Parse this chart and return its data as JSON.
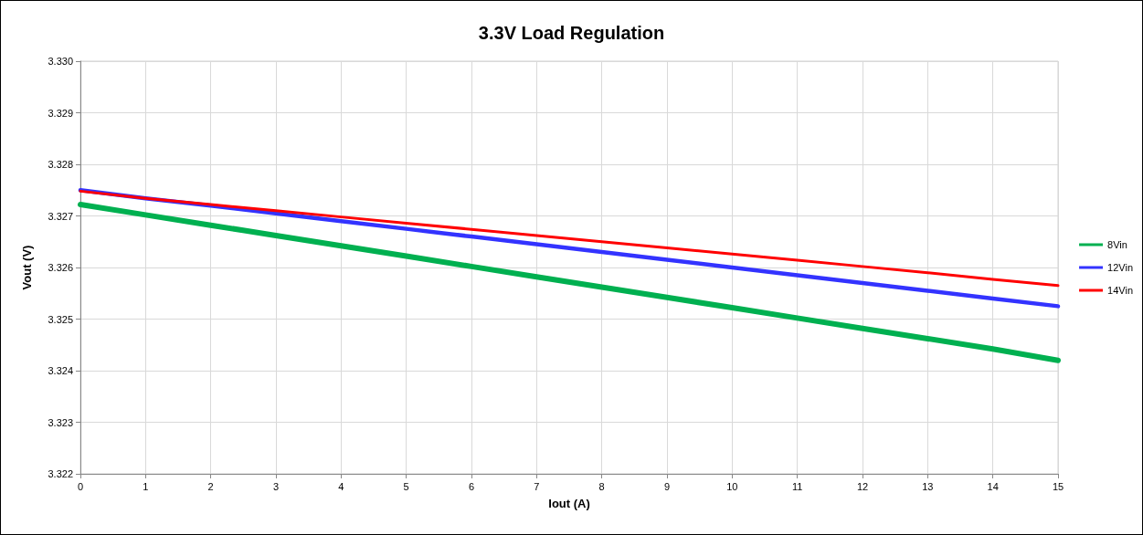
{
  "chart_data": {
    "type": "line",
    "title": "3.3V Load Regulation",
    "xlabel": "Iout (A)",
    "ylabel": "Vout (V)",
    "x": [
      0,
      1,
      2,
      3,
      4,
      5,
      6,
      7,
      8,
      9,
      10,
      11,
      12,
      13,
      14,
      15
    ],
    "series": [
      {
        "name": "8Vin",
        "color": "#00b050",
        "values": [
          3.32722,
          3.32702,
          3.32682,
          3.32662,
          3.32642,
          3.32622,
          3.32602,
          3.32582,
          3.32562,
          3.32542,
          3.32522,
          3.32502,
          3.32482,
          3.32462,
          3.32442,
          3.3242
        ]
      },
      {
        "name": "12Vin",
        "color": "#3333ff",
        "values": [
          3.3275,
          3.32734,
          3.3272,
          3.32705,
          3.3269,
          3.32675,
          3.3266,
          3.32645,
          3.3263,
          3.32615,
          3.326,
          3.32585,
          3.3257,
          3.32555,
          3.3254,
          3.32525
        ]
      },
      {
        "name": "14Vin",
        "color": "#ff0000",
        "values": [
          3.32748,
          3.32734,
          3.32722,
          3.3271,
          3.32698,
          3.32686,
          3.32674,
          3.32662,
          3.3265,
          3.32638,
          3.32626,
          3.32614,
          3.32602,
          3.3259,
          3.32577,
          3.32565
        ]
      }
    ],
    "xlim": [
      0,
      15
    ],
    "xticks": [
      0,
      1,
      2,
      3,
      4,
      5,
      6,
      7,
      8,
      9,
      10,
      11,
      12,
      13,
      14,
      15
    ],
    "ylim": [
      3.322,
      3.33
    ],
    "yticks": [
      3.322,
      3.323,
      3.324,
      3.325,
      3.326,
      3.327,
      3.328,
      3.329,
      {
        "value": 3.33,
        "label": "3.330"
      }
    ],
    "grid": true,
    "legend": "right",
    "marker": "none",
    "line_style": "solid"
  }
}
